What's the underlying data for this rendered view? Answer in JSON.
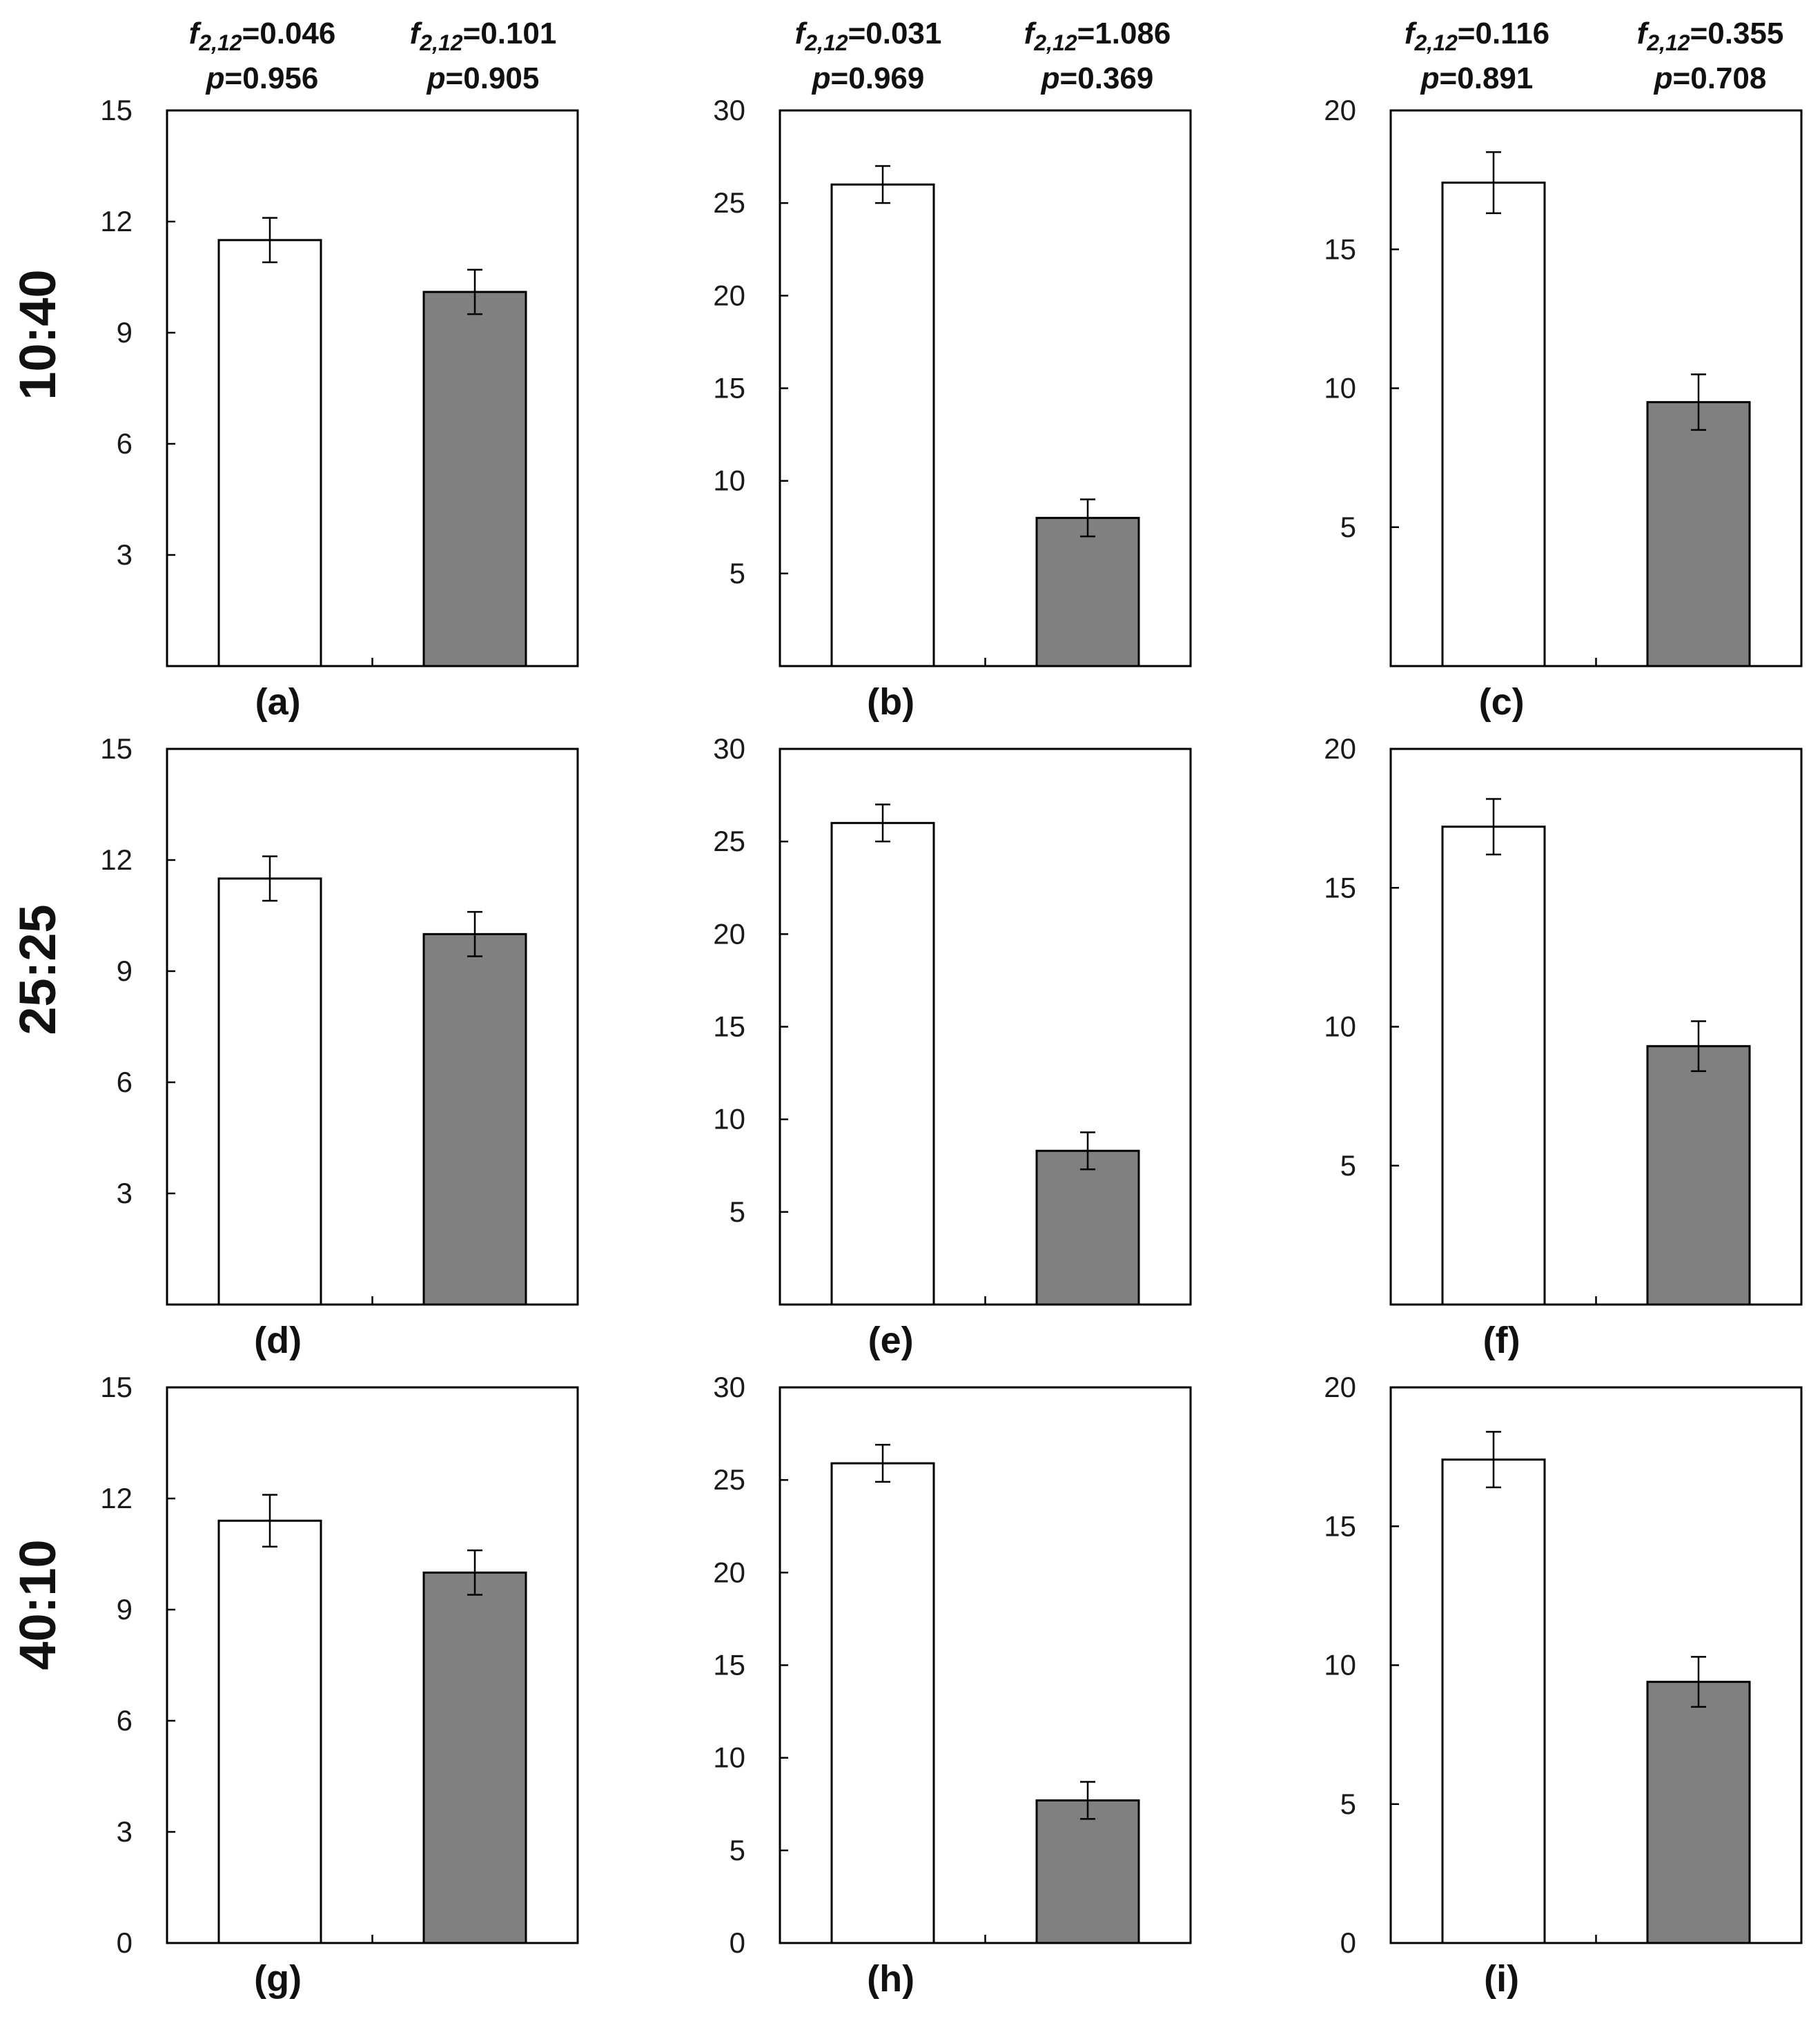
{
  "row_labels": [
    "10:40",
    "25:25",
    "40:10"
  ],
  "stats": [
    {
      "f_prefix": "f",
      "f_sub": "2,12",
      "f_value": "=0.046",
      "p_prefix": "p",
      "p_value": "=0.956"
    },
    {
      "f_prefix": "f",
      "f_sub": "2,12",
      "f_value": "=0.101",
      "p_prefix": "p",
      "p_value": "=0.905"
    },
    {
      "f_prefix": "f",
      "f_sub": "2,12",
      "f_value": "=0.031",
      "p_prefix": "p",
      "p_value": "=0.969"
    },
    {
      "f_prefix": "f",
      "f_sub": "2,12",
      "f_value": "=1.086",
      "p_prefix": "p",
      "p_value": "=0.369"
    },
    {
      "f_prefix": "f",
      "f_sub": "2,12",
      "f_value": "=0.116",
      "p_prefix": "p",
      "p_value": "=0.891"
    },
    {
      "f_prefix": "f",
      "f_sub": "2,12",
      "f_value": "=0.355",
      "p_prefix": "p",
      "p_value": "=0.708"
    }
  ],
  "colors": {
    "bar_white": "#ffffff",
    "bar_gray": "#808080",
    "axis": "#000000"
  },
  "chart_data": [
    {
      "type": "bar",
      "label": "(a)",
      "row": 0,
      "col": 0,
      "ylim": [
        0,
        15
      ],
      "yticks": [
        "3",
        "6",
        "9",
        "12",
        "15"
      ],
      "series": [
        {
          "name": "white",
          "color": "#ffffff",
          "value": 11.5,
          "err": 0.6
        },
        {
          "name": "gray",
          "color": "#808080",
          "value": 10.1,
          "err": 0.6
        }
      ]
    },
    {
      "type": "bar",
      "label": "(b)",
      "row": 0,
      "col": 1,
      "ylim": [
        0,
        30
      ],
      "yticks": [
        "5",
        "10",
        "15",
        "20",
        "25",
        "30"
      ],
      "series": [
        {
          "name": "white",
          "color": "#ffffff",
          "value": 26.0,
          "err": 1.0
        },
        {
          "name": "gray",
          "color": "#808080",
          "value": 8.0,
          "err": 1.0
        }
      ]
    },
    {
      "type": "bar",
      "label": "(c)",
      "row": 0,
      "col": 2,
      "ylim": [
        0,
        20
      ],
      "yticks": [
        "5",
        "10",
        "15",
        "20"
      ],
      "series": [
        {
          "name": "white",
          "color": "#ffffff",
          "value": 17.4,
          "err": 1.1
        },
        {
          "name": "gray",
          "color": "#808080",
          "value": 9.5,
          "err": 1.0
        }
      ]
    },
    {
      "type": "bar",
      "label": "(d)",
      "row": 1,
      "col": 0,
      "ylim": [
        0,
        15
      ],
      "yticks": [
        "3",
        "6",
        "9",
        "12",
        "15"
      ],
      "series": [
        {
          "name": "white",
          "color": "#ffffff",
          "value": 11.5,
          "err": 0.6
        },
        {
          "name": "gray",
          "color": "#808080",
          "value": 10.0,
          "err": 0.6
        }
      ]
    },
    {
      "type": "bar",
      "label": "(e)",
      "row": 1,
      "col": 1,
      "ylim": [
        0,
        30
      ],
      "yticks": [
        "5",
        "10",
        "15",
        "20",
        "25",
        "30"
      ],
      "series": [
        {
          "name": "white",
          "color": "#ffffff",
          "value": 26.0,
          "err": 1.0
        },
        {
          "name": "gray",
          "color": "#808080",
          "value": 8.3,
          "err": 1.0
        }
      ]
    },
    {
      "type": "bar",
      "label": "(f)",
      "row": 1,
      "col": 2,
      "ylim": [
        0,
        20
      ],
      "yticks": [
        "5",
        "10",
        "15",
        "20"
      ],
      "series": [
        {
          "name": "white",
          "color": "#ffffff",
          "value": 17.2,
          "err": 1.0
        },
        {
          "name": "gray",
          "color": "#808080",
          "value": 9.3,
          "err": 0.9
        }
      ]
    },
    {
      "type": "bar",
      "label": "(g)",
      "row": 2,
      "col": 0,
      "ylim": [
        0,
        15
      ],
      "yticks": [
        "0",
        "3",
        "6",
        "9",
        "12",
        "15"
      ],
      "series": [
        {
          "name": "white",
          "color": "#ffffff",
          "value": 11.4,
          "err": 0.7
        },
        {
          "name": "gray",
          "color": "#808080",
          "value": 10.0,
          "err": 0.6
        }
      ]
    },
    {
      "type": "bar",
      "label": "(h)",
      "row": 2,
      "col": 1,
      "ylim": [
        0,
        30
      ],
      "yticks": [
        "0",
        "5",
        "10",
        "15",
        "20",
        "25",
        "30"
      ],
      "series": [
        {
          "name": "white",
          "color": "#ffffff",
          "value": 25.9,
          "err": 1.0
        },
        {
          "name": "gray",
          "color": "#808080",
          "value": 7.7,
          "err": 1.0
        }
      ]
    },
    {
      "type": "bar",
      "label": "(i)",
      "row": 2,
      "col": 2,
      "ylim": [
        0,
        20
      ],
      "yticks": [
        "0",
        "5",
        "10",
        "15",
        "20"
      ],
      "series": [
        {
          "name": "white",
          "color": "#ffffff",
          "value": 17.4,
          "err": 1.0
        },
        {
          "name": "gray",
          "color": "#808080",
          "value": 9.4,
          "err": 0.9
        }
      ]
    }
  ]
}
